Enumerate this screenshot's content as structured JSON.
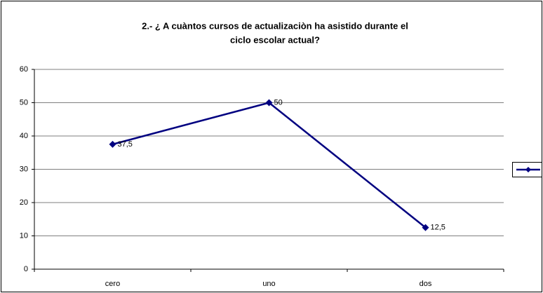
{
  "chart_data": {
    "type": "line",
    "title": [
      "2.- ¿ A cuàntos  cursos de  actualizaciòn  ha asistido durante el",
      "ciclo escolar actual?"
    ],
    "categories": [
      "cero",
      "uno",
      "dos"
    ],
    "series": [
      {
        "color": "#000080",
        "values": [
          37.5,
          50,
          12.5
        ],
        "value_labels": [
          "37,5",
          "50",
          "12,5"
        ]
      }
    ],
    "ylim": [
      0,
      60
    ],
    "yticks": [
      0,
      10,
      20,
      30,
      40,
      50,
      60
    ],
    "grid": true,
    "legend": "right"
  }
}
